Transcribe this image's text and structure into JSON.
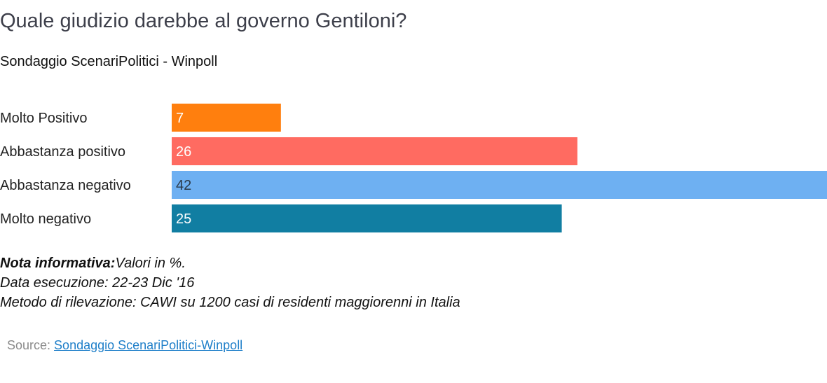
{
  "chart_data": {
    "type": "bar",
    "orientation": "horizontal",
    "title": "Quale giudizio darebbe al governo Gentiloni?",
    "subtitle": "Sondaggio ScenariPolitici - Winpoll",
    "categories": [
      "Molto Positivo",
      "Abbastanza positivo",
      "Abbastanza negativo",
      "Molto negativo"
    ],
    "values": [
      7,
      26,
      42,
      25
    ],
    "colors": [
      "#ff7f0e",
      "#ff6b61",
      "#6eb0f2",
      "#117ea2"
    ],
    "value_label_colors": [
      "#ffffff",
      "#ffffff",
      "#2b3a4a",
      "#ffffff"
    ],
    "xlim": [
      0,
      42
    ],
    "grid": false,
    "legend": "none"
  },
  "notes": {
    "bold_label": "Nota informativa:",
    "line1_rest": "Valori in %.",
    "line2": "Data esecuzione: 22-23 Dic '16",
    "line3": "Metodo di rilevazione: CAWI su 1200 casi di residenti maggiorenni in Italia"
  },
  "source": {
    "label": "Source: ",
    "link_text": "Sondaggio ScenariPolitici-Winpoll"
  }
}
